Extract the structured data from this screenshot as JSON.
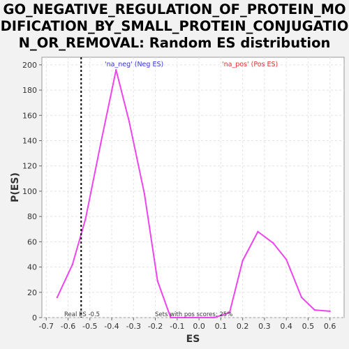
{
  "chart_data": {
    "type": "line",
    "title": "GO_NEGATIVE_REGULATION_OF_PROTEIN_MO\nDIFICATION_BY_SMALL_PROTEIN_CONJUGATIO\nN_OR_REMOVAL: Random ES distribution",
    "xlabel": "ES",
    "ylabel": "P(ES)",
    "xlim": [
      -0.72,
      0.665
    ],
    "ylim": [
      0,
      206
    ],
    "x_ticks": [
      "-0.7",
      "-0.6",
      "-0.5",
      "-0.4",
      "-0.3",
      "-0.2",
      "-0.1",
      "0.0",
      "0.1",
      "0.2",
      "0.3",
      "0.4",
      "0.5",
      "0.6"
    ],
    "x_tick_values": [
      -0.7,
      -0.6,
      -0.5,
      -0.4,
      -0.3,
      -0.2,
      -0.1,
      0.0,
      0.1,
      0.2,
      0.3,
      0.4,
      0.5,
      0.6
    ],
    "y_ticks": [
      "0",
      "20",
      "40",
      "60",
      "80",
      "100",
      "120",
      "140",
      "160",
      "180",
      "200"
    ],
    "y_tick_values": [
      0,
      20,
      40,
      60,
      80,
      100,
      120,
      140,
      160,
      180,
      200
    ],
    "grid": true,
    "line_color": "#ee44ee",
    "series": [
      {
        "x": [
          -0.65,
          -0.58,
          -0.52,
          -0.45,
          -0.38,
          -0.32,
          -0.25,
          -0.19,
          -0.13,
          -0.06,
          0.0,
          0.07,
          0.14,
          0.2,
          0.27,
          0.34,
          0.4,
          0.47,
          0.53,
          0.6
        ],
        "y": [
          16,
          42,
          78,
          138,
          196,
          155,
          98,
          29,
          0,
          0,
          0,
          0,
          4,
          45,
          68,
          59,
          46,
          16,
          6,
          5
        ]
      }
    ],
    "real_es": {
      "value": -0.54,
      "label": "Real ES -0.5"
    },
    "legend": [
      {
        "text": "'na_neg' (Neg ES)",
        "color": "#3333dd"
      },
      {
        "text": "'na_pos' (Pos ES)",
        "color": "#dd3333"
      }
    ],
    "annotation": "Sets with pos scores: 25%"
  }
}
